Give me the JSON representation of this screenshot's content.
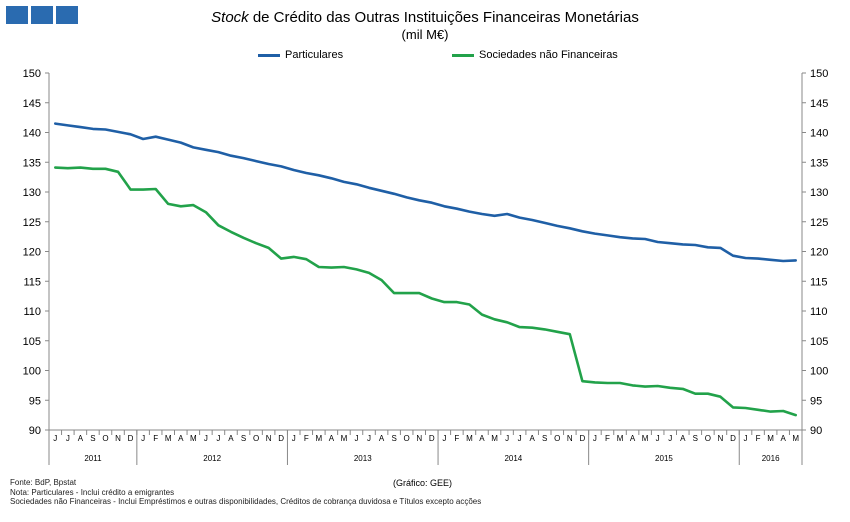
{
  "title_italic": "Stock",
  "title_rest": " de Crédito das Outras Instituições Financeiras Monetárias",
  "subtitle": "(mil M€)",
  "footer": {
    "source": "Fonte: BdP, Bpstat",
    "note1": "Nota: Particulares - Inclui crédito a emigrantes",
    "note2": "Sociedades não Financeiras - Inclui Empréstimos e outras disponibilidades,  Créditos de cobrança duvidosa  e Títulos excepto acções",
    "grafico": "(Gráfico: GEE)"
  },
  "chart_data": {
    "type": "line",
    "y_ticks": [
      90,
      95,
      100,
      105,
      110,
      115,
      120,
      125,
      130,
      135,
      140,
      145,
      150
    ],
    "ylim": [
      90,
      150
    ],
    "grid": false,
    "legend_position": "top",
    "month_labels": [
      "J",
      "J",
      "A",
      "S",
      "O",
      "N",
      "D",
      "J",
      "F",
      "M",
      "A",
      "M",
      "J",
      "J",
      "A",
      "S",
      "O",
      "N",
      "D",
      "J",
      "F",
      "M",
      "A",
      "M",
      "J",
      "J",
      "A",
      "S",
      "O",
      "N",
      "D",
      "J",
      "F",
      "M",
      "A",
      "M",
      "J",
      "J",
      "A",
      "S",
      "O",
      "N",
      "D",
      "J",
      "F",
      "M",
      "A",
      "M",
      "J",
      "J",
      "A",
      "S",
      "O",
      "N",
      "D",
      "J",
      "F",
      "M",
      "A",
      "M"
    ],
    "year_labels": [
      {
        "label": "2011",
        "start": 0,
        "end": 6
      },
      {
        "label": "2012",
        "start": 7,
        "end": 18
      },
      {
        "label": "2013",
        "start": 19,
        "end": 30
      },
      {
        "label": "2014",
        "start": 31,
        "end": 42
      },
      {
        "label": "2015",
        "start": 43,
        "end": 54
      },
      {
        "label": "2016",
        "start": 55,
        "end": 59
      }
    ],
    "x_start": "2011-06",
    "x_end": "2016-05",
    "series": [
      {
        "name": "Particulares",
        "color": "#1f5fa6",
        "values": [
          141.5,
          141.2,
          140.9,
          140.6,
          140.5,
          140.1,
          139.7,
          138.9,
          139.3,
          138.8,
          138.3,
          137.5,
          137.1,
          136.7,
          136.1,
          135.7,
          135.2,
          134.7,
          134.3,
          133.7,
          133.2,
          132.8,
          132.3,
          131.7,
          131.3,
          130.7,
          130.2,
          129.7,
          129.1,
          128.6,
          128.2,
          127.6,
          127.2,
          126.7,
          126.3,
          126.0,
          126.3,
          125.7,
          125.3,
          124.8,
          124.3,
          123.9,
          123.4,
          123.0,
          122.7,
          122.4,
          122.2,
          122.1,
          121.6,
          121.4,
          121.2,
          121.1,
          120.7,
          120.6,
          119.3,
          118.9,
          118.8,
          118.6,
          118.4,
          118.5
        ]
      },
      {
        "name": "Sociedades não Financeiras",
        "color": "#22a24a",
        "values": [
          134.1,
          134.0,
          134.1,
          133.9,
          133.9,
          133.4,
          130.4,
          130.4,
          130.5,
          128.0,
          127.6,
          127.8,
          126.6,
          124.4,
          123.3,
          122.3,
          121.4,
          120.6,
          118.8,
          119.1,
          118.7,
          117.4,
          117.3,
          117.4,
          117.0,
          116.4,
          115.2,
          113.0,
          113.0,
          113.0,
          112.1,
          111.5,
          111.5,
          111.1,
          109.4,
          108.6,
          108.1,
          107.3,
          107.2,
          106.9,
          106.5,
          106.1,
          98.2,
          98.0,
          97.9,
          97.9,
          97.5,
          97.3,
          97.4,
          97.1,
          96.9,
          96.1,
          96.1,
          95.6,
          93.8,
          93.7,
          93.4,
          93.1,
          93.2,
          92.5
        ]
      }
    ]
  }
}
